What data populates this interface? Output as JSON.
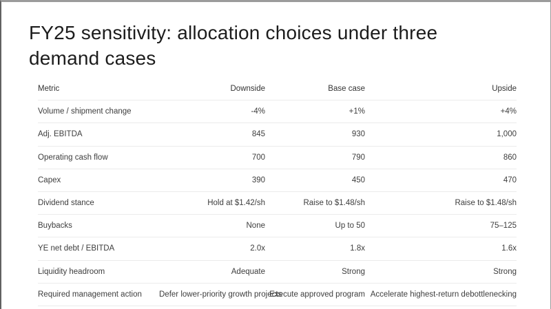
{
  "slide": {
    "title": "FY25 sensitivity: allocation choices under three demand cases"
  },
  "table": {
    "columns": [
      "Metric",
      "Downside",
      "Base case",
      "Upside"
    ],
    "rows": [
      [
        "Volume / shipment change",
        "-4%",
        "+1%",
        "+4%"
      ],
      [
        "Adj. EBITDA",
        "845",
        "930",
        "1,000"
      ],
      [
        "Operating cash flow",
        "700",
        "790",
        "860"
      ],
      [
        "Capex",
        "390",
        "450",
        "470"
      ],
      [
        "Dividend stance",
        "Hold at $1.42/sh",
        "Raise to $1.48/sh",
        "Raise to $1.48/sh"
      ],
      [
        "Buybacks",
        "None",
        "Up to 50",
        "75–125"
      ],
      [
        "YE net debt / EBITDA",
        "2.0x",
        "1.8x",
        "1.6x"
      ],
      [
        "Liquidity headroom",
        "Adequate",
        "Strong",
        "Strong"
      ],
      [
        "Required management action",
        "Defer lower-priority growth projects",
        "Execute approved program",
        "Accelerate highest-return debottlenecking"
      ]
    ]
  },
  "colors": {
    "title_text": "#1c1c1c",
    "table_text": "#3d3d3d",
    "divider": "#ebebeb",
    "frame_top": "#9b9b9b",
    "frame_left": "#616161"
  }
}
